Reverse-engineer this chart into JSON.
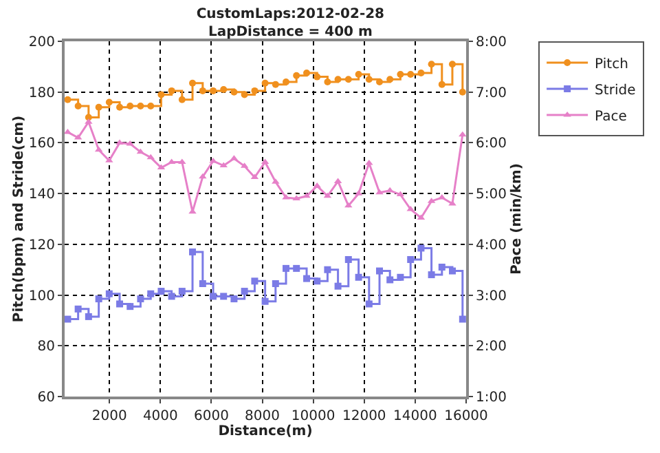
{
  "chart_data": {
    "type": "line",
    "title": "CustomLaps:2012-02-28",
    "subtitle": "LapDistance = 400 m",
    "xlabel": "Distance(m)",
    "ylabel": "Pitch(bpm) and Stride(cm)",
    "y2label": "Pace (min/km)",
    "x": [
      360,
      770,
      1180,
      1580,
      1990,
      2400,
      2810,
      3220,
      3620,
      4030,
      4440,
      4850,
      5260,
      5660,
      6070,
      6480,
      6890,
      7300,
      7700,
      8110,
      8520,
      8930,
      9340,
      9740,
      10150,
      10560,
      10970,
      11380,
      11780,
      12190,
      12600,
      13010,
      13420,
      13820,
      14230,
      14640,
      15050,
      15460,
      15860
    ],
    "series": [
      {
        "name": "Pitch",
        "type": "step",
        "color": "#f0901e",
        "marker": "circle",
        "values": [
          177,
          174.5,
          170,
          174,
          176,
          174,
          174.5,
          174.5,
          174.5,
          179,
          180.5,
          177,
          183.5,
          180.5,
          180.5,
          181,
          180,
          179,
          180.5,
          183.5,
          183,
          184,
          186.5,
          187.5,
          186,
          184,
          185,
          185,
          187,
          185,
          184,
          185,
          187,
          187,
          187.5,
          191,
          183,
          191,
          180
        ]
      },
      {
        "name": "Stride",
        "type": "step",
        "color": "#7b7be6",
        "marker": "square",
        "values": [
          90.5,
          94.5,
          91.5,
          98.5,
          100.5,
          96.5,
          95.5,
          98.5,
          100.5,
          101.5,
          99.5,
          101.5,
          117,
          104.5,
          99.5,
          99.5,
          98.5,
          101.5,
          105.5,
          97.5,
          104.5,
          110.5,
          110.5,
          106.5,
          105.5,
          110,
          103.5,
          114,
          107,
          96.5,
          109.5,
          106,
          107,
          114,
          118.5,
          108,
          111,
          109.5,
          90.5
        ]
      },
      {
        "name": "Pace",
        "axis": "y2",
        "color": "#e680c8",
        "marker": "triangle",
        "values": [
          6.21,
          6.1,
          6.41,
          5.86,
          5.65,
          6.0,
          5.98,
          5.82,
          5.71,
          5.51,
          5.62,
          5.62,
          4.64,
          5.33,
          5.64,
          5.55,
          5.69,
          5.54,
          5.32,
          5.62,
          5.23,
          4.92,
          4.9,
          4.95,
          5.15,
          4.95,
          5.24,
          4.76,
          5.0,
          5.6,
          5.02,
          5.06,
          4.98,
          4.69,
          4.52,
          4.85,
          4.92,
          4.8,
          6.16
        ]
      }
    ],
    "xlim": [
      240,
      16000
    ],
    "xticks": [
      2000,
      4000,
      6000,
      8000,
      10000,
      12000,
      14000,
      16000
    ],
    "ylim": [
      60,
      200
    ],
    "yticks": [
      60,
      80,
      100,
      120,
      140,
      160,
      180,
      200
    ],
    "y2lim": [
      1,
      8
    ],
    "y2ticks": [
      {
        "value": 1,
        "label": "1:00"
      },
      {
        "value": 2,
        "label": "2:00"
      },
      {
        "value": 3,
        "label": "3:00"
      },
      {
        "value": 4,
        "label": "4:00"
      },
      {
        "value": 5,
        "label": "5:00"
      },
      {
        "value": 6,
        "label": "6:00"
      },
      {
        "value": 7,
        "label": "7:00"
      },
      {
        "value": 8,
        "label": "8:00"
      }
    ],
    "grid": true,
    "legend": "top right",
    "line_style": "solid"
  }
}
